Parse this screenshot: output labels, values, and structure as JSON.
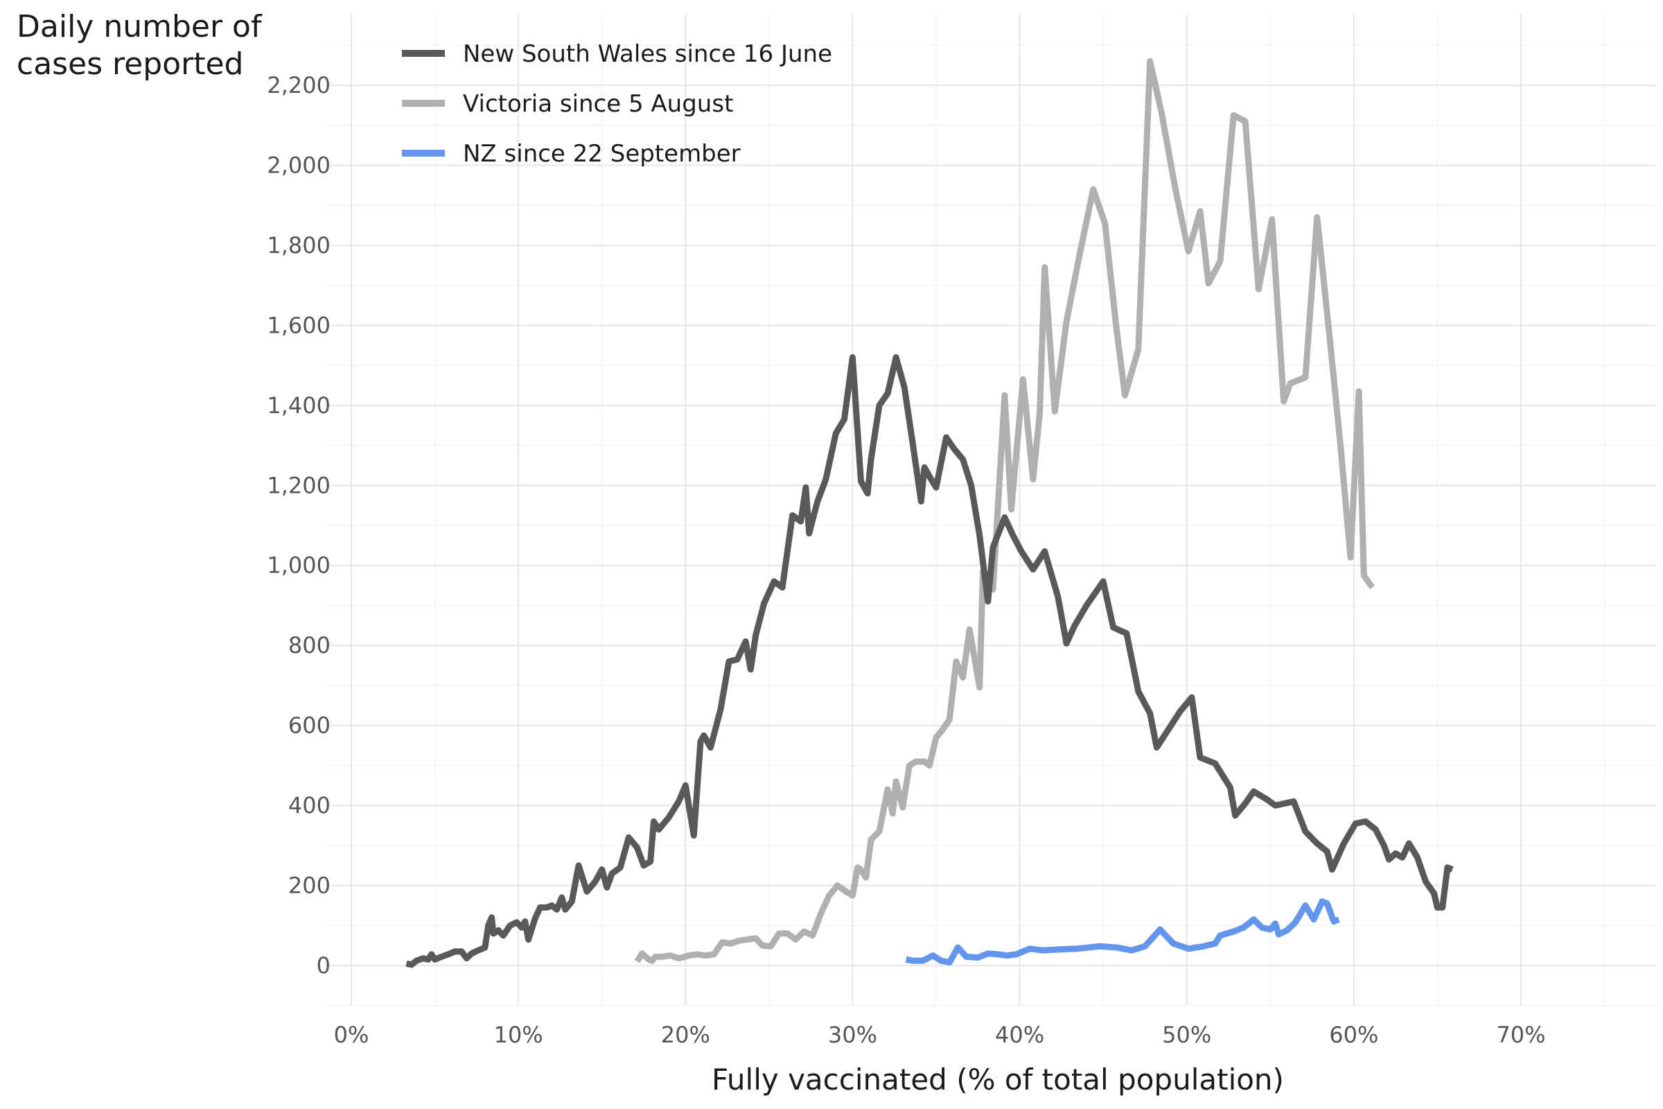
{
  "chart_data": {
    "type": "line",
    "xlabel": "Fully vaccinated (% of total population)",
    "ylabel_lines": [
      "Daily number of",
      "cases reported"
    ],
    "xlim": [
      0,
      78
    ],
    "ylim": [
      -100,
      2360
    ],
    "x_ticks": [
      0,
      10,
      20,
      30,
      40,
      50,
      60,
      70
    ],
    "x_tick_labels": [
      "0%",
      "10%",
      "20%",
      "30%",
      "40%",
      "50%",
      "60%",
      "70%"
    ],
    "y_ticks": [
      0,
      200,
      400,
      600,
      800,
      1000,
      1200,
      1400,
      1600,
      1800,
      2000,
      2200
    ],
    "y_tick_labels": [
      "0",
      "200",
      "400",
      "600",
      "800",
      "1,000",
      "1,200",
      "1,400",
      "1,600",
      "1,800",
      "2,000",
      "2,200"
    ],
    "grid": true,
    "legend_position": "top-left",
    "series": [
      {
        "name": "New South Wales since 16 June",
        "color": "#595959",
        "points": [
          [
            3.3,
            5
          ],
          [
            3.6,
            2
          ],
          [
            3.9,
            12
          ],
          [
            4.3,
            18
          ],
          [
            4.6,
            15
          ],
          [
            4.8,
            28
          ],
          [
            5.0,
            15
          ],
          [
            5.4,
            22
          ],
          [
            5.8,
            28
          ],
          [
            6.2,
            35
          ],
          [
            6.6,
            35
          ],
          [
            6.9,
            18
          ],
          [
            7.2,
            30
          ],
          [
            7.6,
            38
          ],
          [
            8.0,
            45
          ],
          [
            8.2,
            100
          ],
          [
            8.4,
            120
          ],
          [
            8.5,
            80
          ],
          [
            8.8,
            88
          ],
          [
            9.1,
            75
          ],
          [
            9.5,
            100
          ],
          [
            9.9,
            108
          ],
          [
            10.2,
            95
          ],
          [
            10.4,
            110
          ],
          [
            10.6,
            65
          ],
          [
            11.0,
            118
          ],
          [
            11.3,
            145
          ],
          [
            11.7,
            145
          ],
          [
            12.0,
            150
          ],
          [
            12.3,
            140
          ],
          [
            12.6,
            170
          ],
          [
            12.8,
            140
          ],
          [
            13.2,
            160
          ],
          [
            13.6,
            250
          ],
          [
            14.1,
            185
          ],
          [
            14.6,
            210
          ],
          [
            15.0,
            240
          ],
          [
            15.3,
            195
          ],
          [
            15.6,
            230
          ],
          [
            16.1,
            245
          ],
          [
            16.6,
            320
          ],
          [
            17.1,
            295
          ],
          [
            17.5,
            250
          ],
          [
            17.9,
            260
          ],
          [
            18.1,
            360
          ],
          [
            18.4,
            340
          ],
          [
            19.0,
            370
          ],
          [
            19.6,
            410
          ],
          [
            20.0,
            450
          ],
          [
            20.5,
            325
          ],
          [
            20.9,
            560
          ],
          [
            21.1,
            575
          ],
          [
            21.5,
            545
          ],
          [
            22.1,
            640
          ],
          [
            22.6,
            760
          ],
          [
            23.1,
            765
          ],
          [
            23.6,
            810
          ],
          [
            23.9,
            740
          ],
          [
            24.2,
            825
          ],
          [
            24.7,
            905
          ],
          [
            25.3,
            960
          ],
          [
            25.8,
            945
          ],
          [
            26.4,
            1125
          ],
          [
            26.9,
            1110
          ],
          [
            27.2,
            1195
          ],
          [
            27.4,
            1080
          ],
          [
            27.9,
            1160
          ],
          [
            28.4,
            1215
          ],
          [
            29.0,
            1330
          ],
          [
            29.5,
            1365
          ],
          [
            30.0,
            1520
          ],
          [
            30.5,
            1210
          ],
          [
            30.9,
            1180
          ],
          [
            31.1,
            1265
          ],
          [
            31.6,
            1400
          ],
          [
            32.1,
            1430
          ],
          [
            32.6,
            1520
          ],
          [
            33.1,
            1445
          ],
          [
            33.6,
            1305
          ],
          [
            34.1,
            1160
          ],
          [
            34.3,
            1245
          ],
          [
            34.7,
            1215
          ],
          [
            35.0,
            1195
          ],
          [
            35.6,
            1320
          ],
          [
            36.1,
            1290
          ],
          [
            36.6,
            1265
          ],
          [
            37.1,
            1200
          ],
          [
            37.6,
            1075
          ],
          [
            38.1,
            910
          ],
          [
            38.4,
            1045
          ],
          [
            39.1,
            1120
          ],
          [
            39.6,
            1075
          ],
          [
            40.1,
            1035
          ],
          [
            40.8,
            990
          ],
          [
            41.5,
            1035
          ],
          [
            42.3,
            920
          ],
          [
            42.8,
            805
          ],
          [
            43.3,
            850
          ],
          [
            44.0,
            900
          ],
          [
            45.0,
            960
          ],
          [
            45.6,
            845
          ],
          [
            46.4,
            830
          ],
          [
            47.1,
            685
          ],
          [
            47.8,
            630
          ],
          [
            48.2,
            545
          ],
          [
            48.9,
            590
          ],
          [
            49.6,
            635
          ],
          [
            50.3,
            670
          ],
          [
            50.8,
            520
          ],
          [
            51.7,
            505
          ],
          [
            52.6,
            445
          ],
          [
            52.9,
            375
          ],
          [
            53.5,
            405
          ],
          [
            54.0,
            435
          ],
          [
            54.8,
            415
          ],
          [
            55.3,
            400
          ],
          [
            56.4,
            410
          ],
          [
            57.1,
            335
          ],
          [
            57.8,
            305
          ],
          [
            58.4,
            285
          ],
          [
            58.7,
            240
          ],
          [
            59.4,
            305
          ],
          [
            60.1,
            355
          ],
          [
            60.7,
            360
          ],
          [
            61.3,
            340
          ],
          [
            61.8,
            300
          ],
          [
            62.1,
            265
          ],
          [
            62.5,
            280
          ],
          [
            62.9,
            270
          ],
          [
            63.3,
            305
          ],
          [
            63.8,
            270
          ],
          [
            64.3,
            210
          ],
          [
            64.8,
            180
          ],
          [
            65.0,
            145
          ],
          [
            65.3,
            145
          ],
          [
            65.6,
            245
          ],
          [
            65.9,
            240
          ]
        ]
      },
      {
        "name": "Victoria since 5 August",
        "color": "#b0b0b0",
        "points": [
          [
            17.1,
            10
          ],
          [
            17.4,
            30
          ],
          [
            17.8,
            15
          ],
          [
            18.0,
            12
          ],
          [
            18.2,
            22
          ],
          [
            18.6,
            22
          ],
          [
            19.1,
            25
          ],
          [
            19.6,
            18
          ],
          [
            20.2,
            25
          ],
          [
            20.7,
            28
          ],
          [
            21.2,
            25
          ],
          [
            21.7,
            28
          ],
          [
            22.2,
            58
          ],
          [
            22.7,
            55
          ],
          [
            23.2,
            62
          ],
          [
            23.7,
            65
          ],
          [
            24.2,
            68
          ],
          [
            24.6,
            50
          ],
          [
            25.1,
            48
          ],
          [
            25.6,
            80
          ],
          [
            26.1,
            80
          ],
          [
            26.6,
            65
          ],
          [
            27.1,
            85
          ],
          [
            27.6,
            75
          ],
          [
            28.1,
            130
          ],
          [
            28.6,
            175
          ],
          [
            29.1,
            200
          ],
          [
            29.6,
            185
          ],
          [
            30.0,
            175
          ],
          [
            30.3,
            245
          ],
          [
            30.5,
            240
          ],
          [
            30.8,
            220
          ],
          [
            31.1,
            315
          ],
          [
            31.6,
            335
          ],
          [
            32.1,
            440
          ],
          [
            32.4,
            380
          ],
          [
            32.6,
            460
          ],
          [
            33.0,
            395
          ],
          [
            33.4,
            500
          ],
          [
            33.8,
            510
          ],
          [
            34.3,
            510
          ],
          [
            34.6,
            500
          ],
          [
            35.0,
            570
          ],
          [
            35.4,
            590
          ],
          [
            35.8,
            615
          ],
          [
            36.2,
            760
          ],
          [
            36.6,
            720
          ],
          [
            37.0,
            840
          ],
          [
            37.6,
            695
          ],
          [
            37.8,
            985
          ],
          [
            38.2,
            960
          ],
          [
            38.4,
            940
          ],
          [
            39.1,
            1425
          ],
          [
            39.5,
            1140
          ],
          [
            40.2,
            1465
          ],
          [
            40.8,
            1215
          ],
          [
            41.2,
            1380
          ],
          [
            41.5,
            1745
          ],
          [
            42.1,
            1385
          ],
          [
            42.8,
            1610
          ],
          [
            43.6,
            1780
          ],
          [
            44.4,
            1940
          ],
          [
            45.1,
            1855
          ],
          [
            45.8,
            1590
          ],
          [
            46.3,
            1425
          ],
          [
            47.1,
            1540
          ],
          [
            47.8,
            2260
          ],
          [
            48.5,
            2130
          ],
          [
            49.3,
            1945
          ],
          [
            50.1,
            1785
          ],
          [
            50.8,
            1885
          ],
          [
            51.3,
            1705
          ],
          [
            52.0,
            1760
          ],
          [
            52.8,
            2125
          ],
          [
            53.5,
            2110
          ],
          [
            54.3,
            1690
          ],
          [
            55.1,
            1865
          ],
          [
            55.8,
            1410
          ],
          [
            56.2,
            1455
          ],
          [
            57.1,
            1470
          ],
          [
            57.8,
            1870
          ],
          [
            58.5,
            1590
          ],
          [
            59.2,
            1300
          ],
          [
            59.8,
            1020
          ],
          [
            60.3,
            1435
          ],
          [
            60.6,
            975
          ],
          [
            61.1,
            945
          ]
        ]
      },
      {
        "name": "NZ since 22 September",
        "color": "#6495ED",
        "points": [
          [
            33.2,
            15
          ],
          [
            33.6,
            12
          ],
          [
            34.2,
            12
          ],
          [
            34.8,
            25
          ],
          [
            35.3,
            12
          ],
          [
            35.8,
            8
          ],
          [
            36.3,
            45
          ],
          [
            36.8,
            22
          ],
          [
            37.5,
            20
          ],
          [
            38.1,
            30
          ],
          [
            38.7,
            28
          ],
          [
            39.2,
            25
          ],
          [
            39.8,
            28
          ],
          [
            40.6,
            42
          ],
          [
            41.4,
            38
          ],
          [
            42.3,
            40
          ],
          [
            43.4,
            42
          ],
          [
            44.8,
            48
          ],
          [
            45.8,
            45
          ],
          [
            46.7,
            38
          ],
          [
            47.5,
            48
          ],
          [
            48.4,
            90
          ],
          [
            49.2,
            55
          ],
          [
            50.1,
            42
          ],
          [
            51.0,
            48
          ],
          [
            51.7,
            55
          ],
          [
            52.0,
            75
          ],
          [
            52.8,
            85
          ],
          [
            53.4,
            95
          ],
          [
            54.0,
            115
          ],
          [
            54.5,
            95
          ],
          [
            55.0,
            90
          ],
          [
            55.3,
            105
          ],
          [
            55.5,
            78
          ],
          [
            56.0,
            88
          ],
          [
            56.5,
            108
          ],
          [
            57.1,
            150
          ],
          [
            57.6,
            115
          ],
          [
            58.1,
            160
          ],
          [
            58.4,
            155
          ],
          [
            58.8,
            110
          ],
          [
            59.1,
            115
          ]
        ]
      }
    ]
  }
}
